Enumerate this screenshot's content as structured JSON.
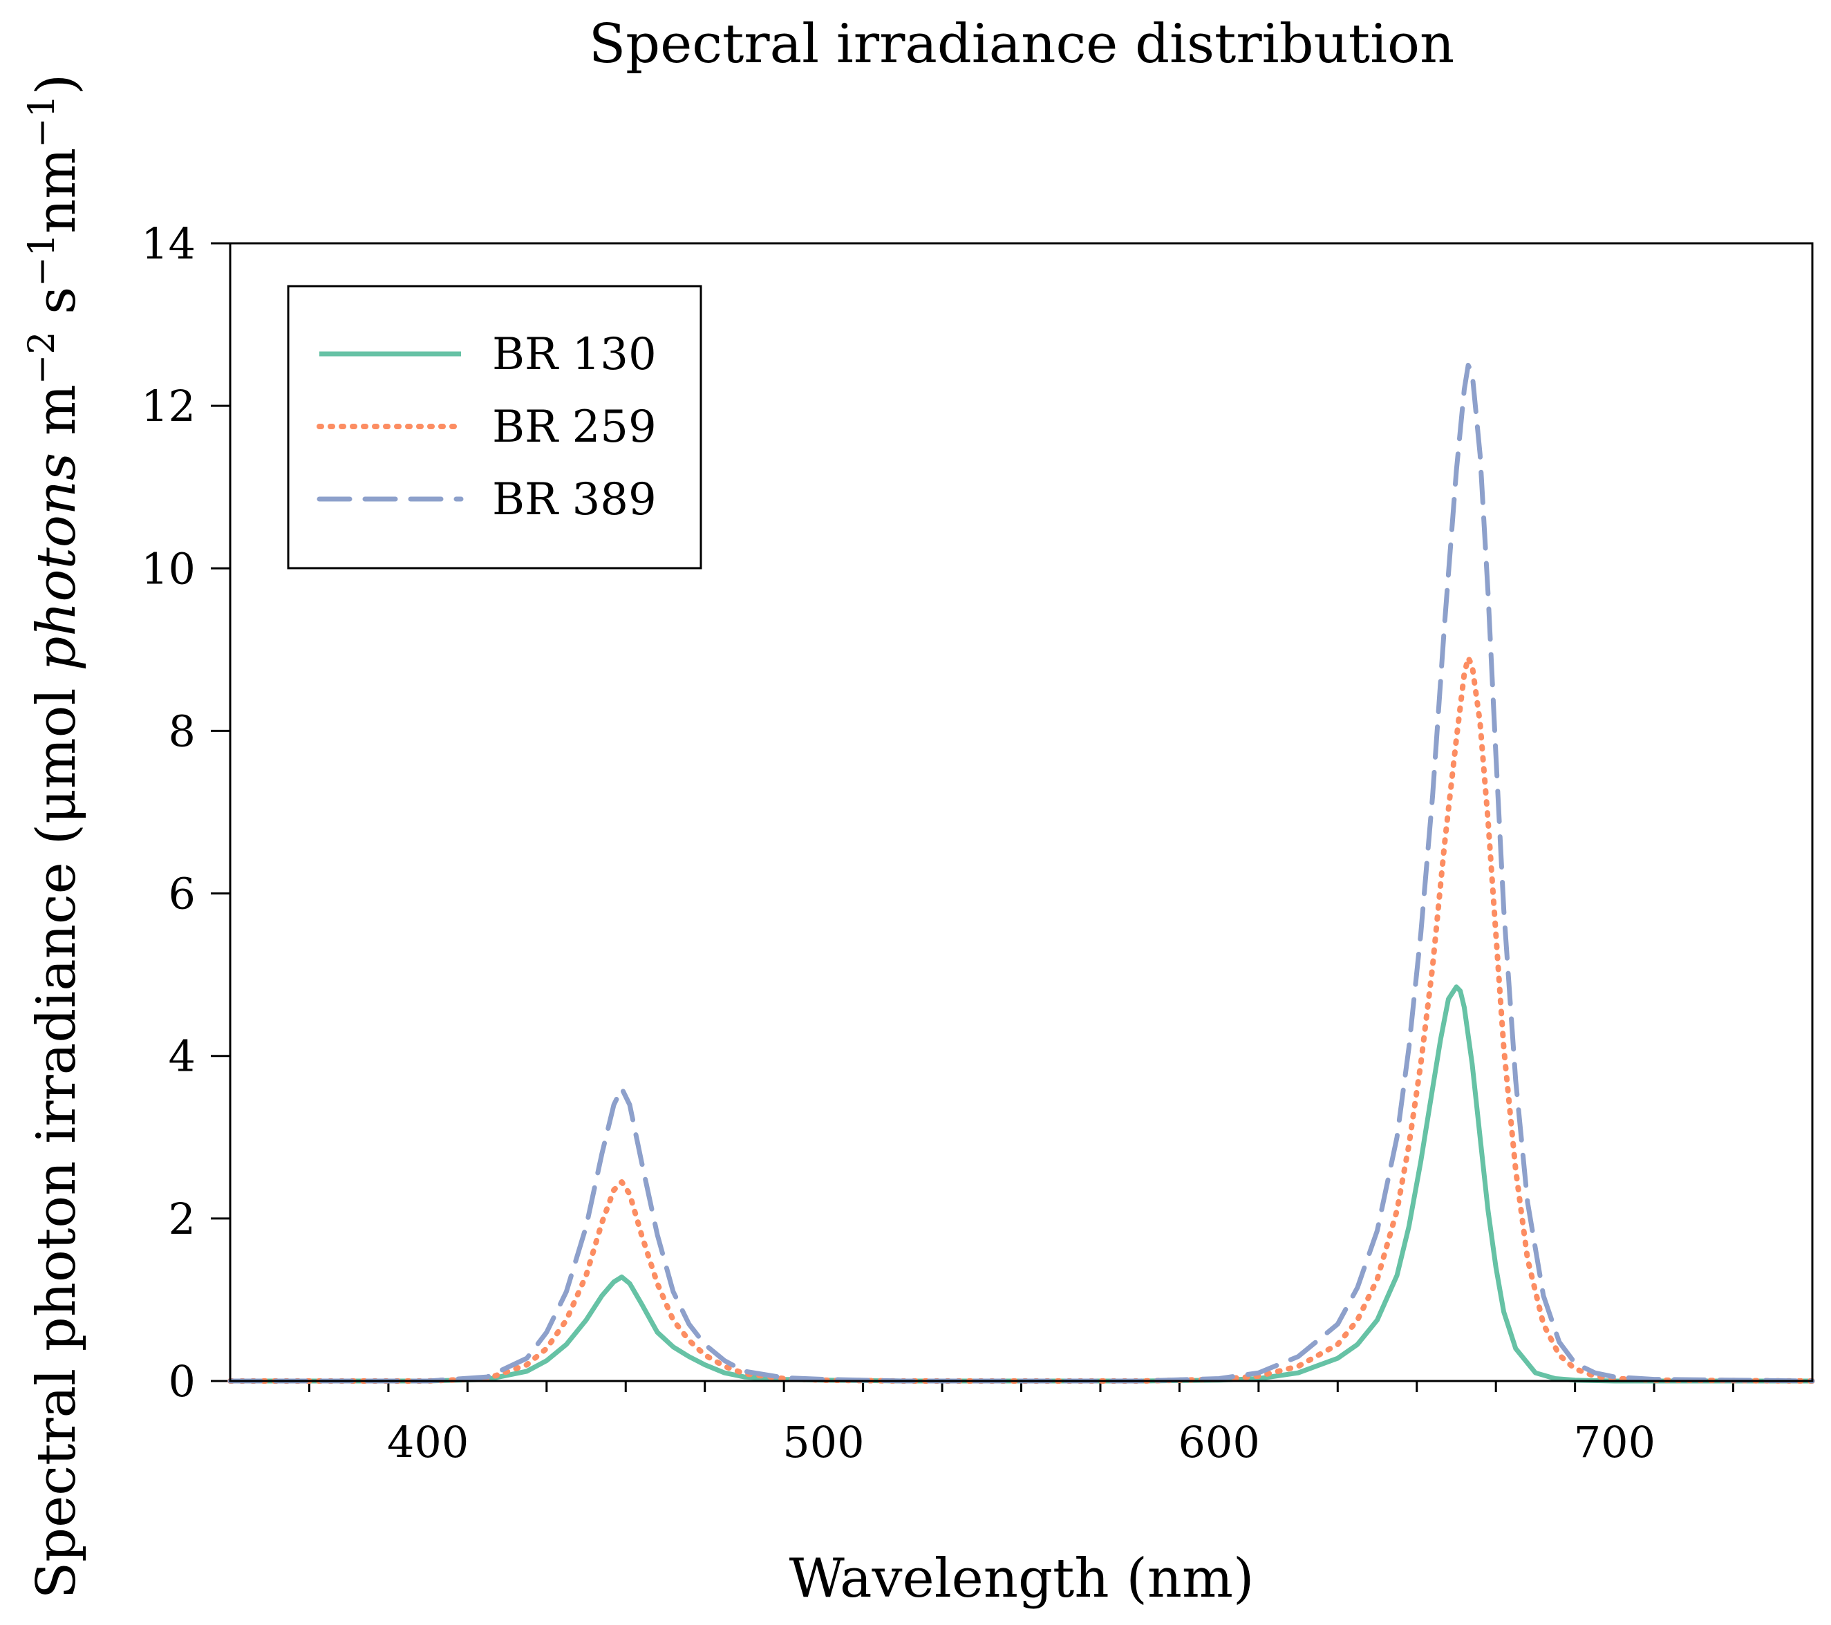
{
  "chart_data": {
    "type": "line",
    "title": "Spectral irradiance distribution",
    "xlabel": "Wavelength (nm)",
    "ylabel": {
      "prefix": "Spectral photon irradiance (",
      "unit_mu": "μmol ",
      "unit_italic": "photons",
      "unit_m": " m",
      "exp_m": "−2",
      "unit_s": " s",
      "exp_s": "−1",
      "unit_nm": "nm",
      "exp_nm": "−1",
      "suffix": ")"
    },
    "xlim": [
      350,
      750
    ],
    "ylim": [
      0,
      14
    ],
    "xticks": [
      400,
      500,
      600,
      700
    ],
    "xtick_labels": [
      "400",
      "500",
      "600",
      "700"
    ],
    "yticks": [
      0,
      2,
      4,
      6,
      8,
      10,
      12,
      14
    ],
    "ytick_labels": [
      "0",
      "2",
      "4",
      "6",
      "8",
      "10",
      "12",
      "14"
    ],
    "legend_position": "top-left",
    "series": [
      {
        "name": "BR 130",
        "color": "#66c2a5",
        "style": "solid",
        "x": [
          350,
          400,
          415,
          425,
          430,
          435,
          440,
          444,
          447,
          449,
          451,
          454,
          458,
          462,
          466,
          470,
          475,
          480,
          490,
          500,
          520,
          550,
          580,
          600,
          610,
          620,
          630,
          635,
          640,
          645,
          648,
          651,
          654,
          656,
          658,
          660,
          661,
          662,
          664,
          666,
          668,
          670,
          672,
          675,
          680,
          685,
          690,
          700,
          710,
          750
        ],
        "values": [
          0,
          0,
          0.02,
          0.12,
          0.25,
          0.45,
          0.75,
          1.05,
          1.22,
          1.28,
          1.2,
          0.95,
          0.6,
          0.42,
          0.3,
          0.2,
          0.1,
          0.05,
          0.02,
          0.01,
          0,
          0,
          0,
          0.01,
          0.03,
          0.1,
          0.28,
          0.45,
          0.75,
          1.3,
          1.9,
          2.7,
          3.6,
          4.2,
          4.7,
          4.85,
          4.8,
          4.6,
          3.9,
          3.0,
          2.1,
          1.4,
          0.85,
          0.4,
          0.1,
          0.03,
          0.01,
          0,
          0,
          0
        ]
      },
      {
        "name": "BR 259",
        "color": "#fc8d62",
        "style": "dotted",
        "x": [
          350,
          400,
          415,
          425,
          430,
          435,
          440,
          444,
          447,
          449,
          451,
          454,
          458,
          462,
          466,
          470,
          475,
          480,
          490,
          500,
          520,
          550,
          580,
          600,
          610,
          620,
          630,
          635,
          640,
          645,
          648,
          651,
          654,
          657,
          660,
          662,
          663,
          664,
          666,
          668,
          670,
          672,
          675,
          678,
          682,
          686,
          690,
          695,
          700,
          710,
          750
        ],
        "values": [
          0,
          0,
          0.03,
          0.2,
          0.4,
          0.75,
          1.3,
          1.95,
          2.35,
          2.45,
          2.3,
          1.8,
          1.2,
          0.75,
          0.5,
          0.32,
          0.18,
          0.09,
          0.03,
          0.01,
          0,
          0,
          0,
          0.02,
          0.06,
          0.18,
          0.45,
          0.75,
          1.25,
          2.1,
          2.9,
          3.9,
          5.1,
          6.6,
          7.9,
          8.7,
          8.9,
          8.8,
          8.1,
          6.9,
          5.5,
          4.1,
          2.6,
          1.5,
          0.7,
          0.32,
          0.15,
          0.06,
          0.03,
          0.01,
          0
        ]
      },
      {
        "name": "BR 389",
        "color": "#8da0cb",
        "style": "dashed",
        "x": [
          350,
          400,
          415,
          425,
          430,
          435,
          440,
          444,
          447,
          449,
          451,
          454,
          458,
          462,
          466,
          470,
          475,
          480,
          490,
          500,
          520,
          550,
          580,
          600,
          610,
          620,
          630,
          635,
          640,
          645,
          648,
          651,
          654,
          657,
          660,
          662,
          663,
          664,
          666,
          668,
          670,
          672,
          675,
          678,
          682,
          686,
          690,
          695,
          700,
          710,
          750
        ],
        "values": [
          0,
          0,
          0.05,
          0.28,
          0.6,
          1.1,
          1.9,
          2.8,
          3.4,
          3.6,
          3.4,
          2.7,
          1.8,
          1.1,
          0.7,
          0.45,
          0.25,
          0.12,
          0.04,
          0.02,
          0,
          0,
          0,
          0.03,
          0.1,
          0.3,
          0.7,
          1.15,
          1.85,
          3.0,
          4.1,
          5.5,
          7.2,
          9.3,
          11.2,
          12.2,
          12.5,
          12.4,
          11.4,
          9.7,
          7.7,
          5.8,
          3.7,
          2.2,
          1.05,
          0.48,
          0.22,
          0.1,
          0.05,
          0.02,
          0
        ]
      }
    ]
  }
}
